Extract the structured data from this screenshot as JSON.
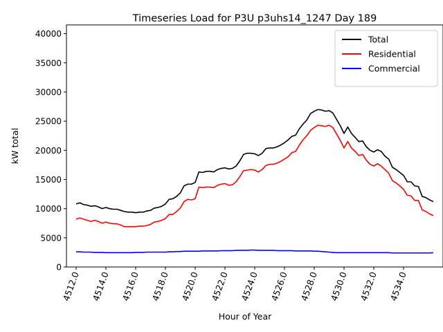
{
  "chart_data": {
    "type": "line",
    "title": "Timeseries Load for P3U p3uhs14_1247  Day 189",
    "xlabel": "Hour of Year",
    "ylabel": "kW total",
    "xlim": [
      4511.35,
      4536.65
    ],
    "ylim": [
      0,
      41500
    ],
    "x_ticks": [
      4512,
      4514,
      4516,
      4518,
      4520,
      4522,
      4524,
      4526,
      4528,
      4530,
      4532,
      4534
    ],
    "x_tick_labels": [
      "4512.0",
      "4514.0",
      "4516.0",
      "4518.0",
      "4520.0",
      "4522.0",
      "4524.0",
      "4526.0",
      "4528.0",
      "4530.0",
      "4532.0",
      "4534.0"
    ],
    "y_ticks": [
      0,
      5000,
      10000,
      15000,
      20000,
      25000,
      30000,
      35000,
      40000
    ],
    "y_tick_labels": [
      "0",
      "5000",
      "10000",
      "15000",
      "20000",
      "25000",
      "30000",
      "35000",
      "40000"
    ],
    "legend_position": "top-right",
    "x_start": 4512,
    "x_step": 0.25,
    "series": [
      {
        "name": "Total",
        "color": "#000000",
        "values": [
          10800,
          11000,
          10700,
          10600,
          10400,
          10500,
          10300,
          10000,
          10200,
          10000,
          9900,
          9900,
          9700,
          9500,
          9400,
          9400,
          9300,
          9400,
          9400,
          9600,
          9700,
          10100,
          10200,
          10400,
          10800,
          11600,
          11700,
          12100,
          12700,
          13900,
          14200,
          14200,
          14500,
          16300,
          16200,
          16400,
          16400,
          16300,
          16700,
          16900,
          17000,
          16800,
          16900,
          17300,
          18200,
          19300,
          19500,
          19500,
          19400,
          19100,
          19500,
          20300,
          20400,
          20400,
          20600,
          20900,
          21300,
          21800,
          22400,
          22600,
          23700,
          24500,
          25200,
          26300,
          26700,
          27000,
          26900,
          26700,
          26800,
          26400,
          25300,
          24200,
          22900,
          24000,
          22900,
          22200,
          21500,
          21600,
          20600,
          20000,
          19700,
          20100,
          19800,
          19000,
          18500,
          17100,
          16700,
          16200,
          15700,
          14600,
          14600,
          13900,
          13800,
          12100,
          11900,
          11500,
          11200
        ]
      },
      {
        "name": "Residential",
        "color": "#ff0000",
        "values": [
          8200,
          8400,
          8200,
          8000,
          7800,
          8000,
          7800,
          7500,
          7700,
          7500,
          7400,
          7400,
          7200,
          6900,
          6900,
          6900,
          6900,
          7000,
          7000,
          7100,
          7300,
          7700,
          7800,
          8000,
          8300,
          9000,
          9000,
          9500,
          10100,
          11200,
          11600,
          11500,
          11700,
          13700,
          13600,
          13700,
          13700,
          13600,
          14000,
          14200,
          14300,
          14000,
          14100,
          14600,
          15500,
          16500,
          16600,
          16700,
          16600,
          16300,
          16700,
          17400,
          17600,
          17600,
          17800,
          18100,
          18500,
          18900,
          19600,
          19800,
          20900,
          21800,
          22500,
          23400,
          23900,
          24300,
          24200,
          24100,
          24300,
          23900,
          22800,
          21700,
          20400,
          21500,
          20400,
          19800,
          19100,
          19300,
          18300,
          17600,
          17300,
          17700,
          17300,
          16700,
          16100,
          14800,
          14400,
          13900,
          13300,
          12300,
          12200,
          11400,
          11400,
          9800,
          9500,
          9100,
          8800
        ]
      },
      {
        "name": "Commercial",
        "color": "#0000ff",
        "values": [
          2600,
          2600,
          2550,
          2550,
          2550,
          2500,
          2500,
          2500,
          2450,
          2450,
          2450,
          2450,
          2450,
          2450,
          2450,
          2450,
          2500,
          2500,
          2500,
          2550,
          2550,
          2550,
          2550,
          2550,
          2550,
          2600,
          2600,
          2650,
          2650,
          2700,
          2700,
          2700,
          2700,
          2700,
          2750,
          2750,
          2750,
          2750,
          2750,
          2800,
          2800,
          2800,
          2800,
          2850,
          2850,
          2850,
          2850,
          2900,
          2900,
          2850,
          2850,
          2850,
          2850,
          2850,
          2800,
          2800,
          2800,
          2800,
          2800,
          2750,
          2750,
          2750,
          2750,
          2750,
          2700,
          2700,
          2650,
          2600,
          2550,
          2500,
          2450,
          2450,
          2450,
          2450,
          2450,
          2450,
          2450,
          2450,
          2450,
          2450,
          2450,
          2450,
          2450,
          2450,
          2450,
          2400,
          2400,
          2400,
          2400,
          2400,
          2400,
          2400,
          2400,
          2400,
          2400,
          2400,
          2450
        ]
      }
    ]
  }
}
